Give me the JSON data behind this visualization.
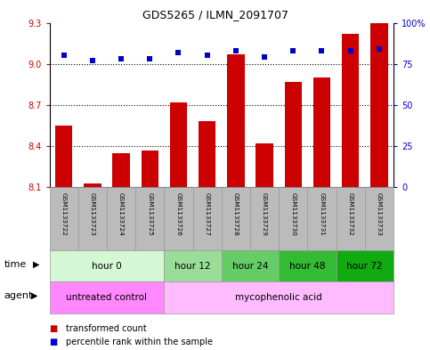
{
  "title": "GDS5265 / ILMN_2091707",
  "samples": [
    "GSM1133722",
    "GSM1133723",
    "GSM1133724",
    "GSM1133725",
    "GSM1133726",
    "GSM1133727",
    "GSM1133728",
    "GSM1133729",
    "GSM1133730",
    "GSM1133731",
    "GSM1133732",
    "GSM1133733"
  ],
  "transformed_count": [
    8.55,
    8.13,
    8.35,
    8.37,
    8.72,
    8.58,
    9.07,
    8.42,
    8.87,
    8.9,
    9.22,
    9.3
  ],
  "percentile_rank": [
    80,
    77,
    78,
    78,
    82,
    80,
    83,
    79,
    83,
    83,
    83,
    84
  ],
  "bar_color": "#cc0000",
  "dot_color": "#0000cc",
  "ylim_left": [
    8.1,
    9.3
  ],
  "ylim_right": [
    0,
    100
  ],
  "yticks_left": [
    8.1,
    8.4,
    8.7,
    9.0,
    9.3
  ],
  "yticks_right": [
    0,
    25,
    50,
    75,
    100
  ],
  "ytick_labels_right": [
    "0",
    "25",
    "50",
    "75",
    "100%"
  ],
  "hlines": [
    9.0,
    8.7,
    8.4
  ],
  "time_groups": [
    {
      "label": "hour 0",
      "start": 0,
      "end": 4,
      "color": "#d4f7d4"
    },
    {
      "label": "hour 12",
      "start": 4,
      "end": 6,
      "color": "#99dd99"
    },
    {
      "label": "hour 24",
      "start": 6,
      "end": 8,
      "color": "#66cc66"
    },
    {
      "label": "hour 48",
      "start": 8,
      "end": 10,
      "color": "#33bb33"
    },
    {
      "label": "hour 72",
      "start": 10,
      "end": 12,
      "color": "#11aa11"
    }
  ],
  "agent_groups": [
    {
      "label": "untreated control",
      "start": 0,
      "end": 4,
      "color": "#ff88ff"
    },
    {
      "label": "mycophenolic acid",
      "start": 4,
      "end": 12,
      "color": "#ffbbff"
    }
  ],
  "legend_items": [
    {
      "label": "transformed count",
      "color": "#cc0000"
    },
    {
      "label": "percentile rank within the sample",
      "color": "#0000cc"
    }
  ],
  "bar_width": 0.6,
  "baseline": 8.1,
  "left_tick_color": "#cc0000",
  "right_tick_color": "#0000cc",
  "sample_box_color": "#bbbbbb",
  "background_color": "#ffffff"
}
